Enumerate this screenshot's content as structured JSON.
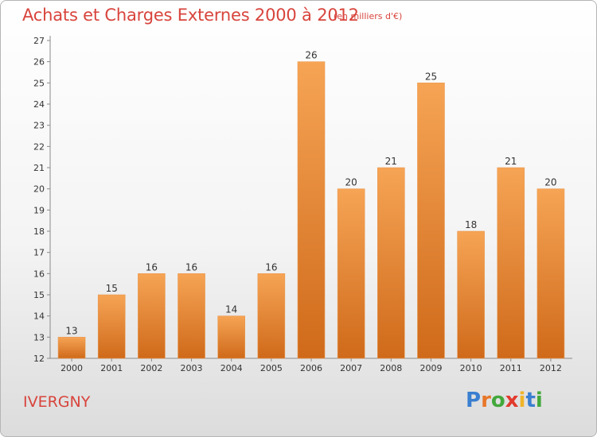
{
  "header": {
    "title": "Achats et Charges Externes 2000 à 2012",
    "subtitle": "(en milliers d'€)"
  },
  "footer": {
    "town": "IVERGNY",
    "logo_letters": [
      "P",
      "r",
      "o",
      "x",
      "i",
      "t",
      "i"
    ],
    "logo_colors": [
      "#3a7fd0",
      "#e8772a",
      "#43a83c",
      "#e23a2d",
      "#f0b429",
      "#3a7fd0",
      "#43a83c"
    ]
  },
  "colors": {
    "bar_light": "#f6a455",
    "bar_dark": "#cf6a1a",
    "text_accent": "#d8443c"
  },
  "chart_data": {
    "type": "bar",
    "title": "Achats et Charges Externes 2000 à 2012",
    "subtitle": "(en milliers d'€)",
    "xlabel": "",
    "ylabel": "",
    "categories": [
      "2000",
      "2001",
      "2002",
      "2003",
      "2004",
      "2005",
      "2006",
      "2007",
      "2008",
      "2009",
      "2010",
      "2011",
      "2012"
    ],
    "values": [
      13,
      15,
      16,
      16,
      14,
      16,
      26,
      20,
      21,
      25,
      18,
      21,
      20
    ],
    "value_labels": [
      "13",
      "15",
      "16",
      "16",
      "14",
      "16",
      "26",
      "20",
      "21",
      "25",
      "18",
      "21",
      "20"
    ],
    "yticks": [
      "12",
      "13",
      "14",
      "15",
      "16",
      "17",
      "18",
      "19",
      "20",
      "21",
      "22",
      "23",
      "24",
      "25",
      "26",
      "27"
    ],
    "ylim": [
      12,
      27
    ],
    "grid": false,
    "legend": "none"
  }
}
